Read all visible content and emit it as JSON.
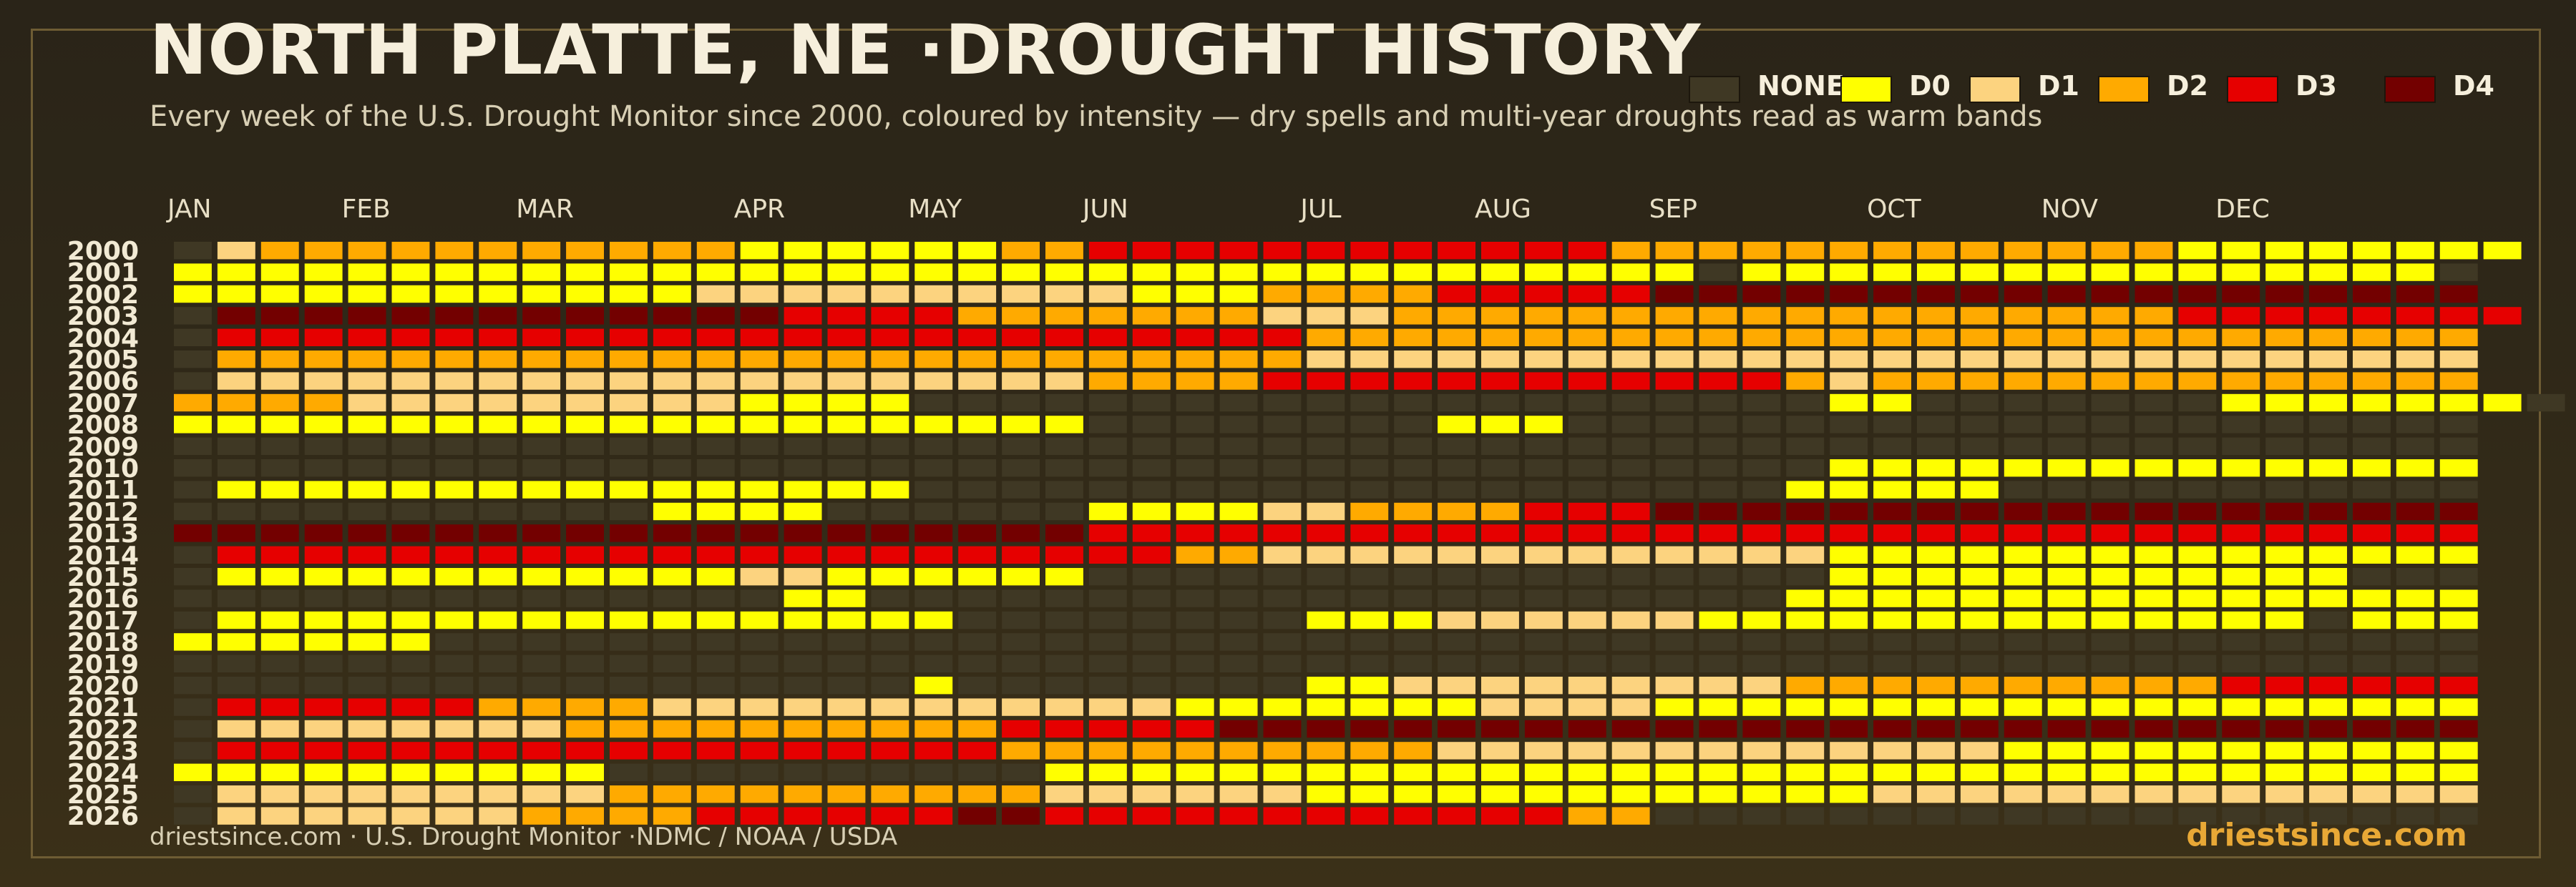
{
  "title": "NORTH PLATTE, NE ·DROUGHT HISTORY",
  "subtitle": "Every week of the U.S. Drought Monitor since 2000, coloured by intensity — dry spells and multi-year droughts read as warm bands",
  "footer": {
    "source": "driestsince.com  · U.S. Drought Monitor ·NDMC / NOAA / USDA",
    "brand": "driestsince.com"
  },
  "colors": {
    "NONE": "#3f3824",
    "D0": "#ffff00",
    "D1": "#fcd37f",
    "D2": "#ffaa00",
    "D3": "#e60000",
    "D4": "#730000"
  },
  "chart_data": {
    "type": "heatmap",
    "legend": [
      {
        "label": "NONE",
        "code": "NONE"
      },
      {
        "label": "D0",
        "code": "D0"
      },
      {
        "label": "D1",
        "code": "D1"
      },
      {
        "label": "D2",
        "code": "D2"
      },
      {
        "label": "D3",
        "code": "D3"
      },
      {
        "label": "D4",
        "code": "D4"
      }
    ],
    "legend_placement": "top-right",
    "months": [
      {
        "label": "JAN",
        "week": 0
      },
      {
        "label": "FEB",
        "week": 4
      },
      {
        "label": "MAR",
        "week": 8
      },
      {
        "label": "APR",
        "week": 13
      },
      {
        "label": "MAY",
        "week": 17
      },
      {
        "label": "JUN",
        "week": 21
      },
      {
        "label": "JUL",
        "week": 26
      },
      {
        "label": "AUG",
        "week": 30
      },
      {
        "label": "SEP",
        "week": 34
      },
      {
        "label": "OCT",
        "week": 39
      },
      {
        "label": "NOV",
        "week": 43
      },
      {
        "label": "DEC",
        "week": 47
      }
    ],
    "weeks_per_year": 53,
    "value_scale": "0 = NONE, 1 = D0, 2 = D1, 3 = D2, 4 = D3, 5 = D4",
    "years": [
      {
        "year": "2000",
        "runs": [
          [
            0,
            1
          ],
          [
            2,
            1
          ],
          [
            3,
            11
          ],
          [
            1,
            6
          ],
          [
            3,
            2
          ],
          [
            4,
            12
          ],
          [
            3,
            13
          ],
          [
            1,
            8
          ]
        ]
      },
      {
        "year": "2001",
        "runs": [
          [
            1,
            35
          ],
          [
            0,
            1
          ],
          [
            1,
            16
          ],
          [
            0,
            1
          ]
        ]
      },
      {
        "year": "2002",
        "runs": [
          [
            1,
            12
          ],
          [
            2,
            10
          ],
          [
            1,
            3
          ],
          [
            3,
            4
          ],
          [
            4,
            5
          ],
          [
            5,
            19
          ]
        ]
      },
      {
        "year": "2003",
        "runs": [
          [
            0,
            1
          ],
          [
            5,
            13
          ],
          [
            4,
            4
          ],
          [
            3,
            7
          ],
          [
            2,
            3
          ],
          [
            3,
            18
          ],
          [
            4,
            8
          ]
        ]
      },
      {
        "year": "2004",
        "runs": [
          [
            0,
            1
          ],
          [
            4,
            25
          ],
          [
            3,
            27
          ]
        ]
      },
      {
        "year": "2005",
        "runs": [
          [
            0,
            1
          ],
          [
            3,
            25
          ],
          [
            2,
            27
          ]
        ]
      },
      {
        "year": "2006",
        "runs": [
          [
            0,
            1
          ],
          [
            2,
            20
          ],
          [
            3,
            4
          ],
          [
            4,
            12
          ],
          [
            3,
            1
          ],
          [
            2,
            1
          ],
          [
            3,
            14
          ]
        ]
      },
      {
        "year": "2007",
        "runs": [
          [
            3,
            4
          ],
          [
            2,
            9
          ],
          [
            1,
            4
          ],
          [
            0,
            21
          ],
          [
            1,
            2
          ],
          [
            0,
            7
          ],
          [
            1,
            7
          ],
          [
            0,
            1
          ]
        ]
      },
      {
        "year": "2008",
        "runs": [
          [
            1,
            21
          ],
          [
            0,
            8
          ],
          [
            1,
            3
          ],
          [
            0,
            21
          ]
        ]
      },
      {
        "year": "2009",
        "runs": [
          [
            0,
            53
          ]
        ]
      },
      {
        "year": "2010",
        "runs": [
          [
            0,
            38
          ],
          [
            1,
            15
          ]
        ]
      },
      {
        "year": "2011",
        "runs": [
          [
            0,
            1
          ],
          [
            1,
            16
          ],
          [
            0,
            20
          ],
          [
            1,
            5
          ],
          [
            0,
            11
          ]
        ]
      },
      {
        "year": "2012",
        "runs": [
          [
            0,
            11
          ],
          [
            1,
            4
          ],
          [
            0,
            6
          ],
          [
            1,
            4
          ],
          [
            2,
            2
          ],
          [
            3,
            4
          ],
          [
            4,
            3
          ],
          [
            5,
            19
          ]
        ]
      },
      {
        "year": "2013",
        "runs": [
          [
            5,
            21
          ],
          [
            4,
            32
          ]
        ]
      },
      {
        "year": "2014",
        "runs": [
          [
            0,
            1
          ],
          [
            4,
            22
          ],
          [
            3,
            2
          ],
          [
            2,
            13
          ],
          [
            1,
            15
          ]
        ]
      },
      {
        "year": "2015",
        "runs": [
          [
            0,
            1
          ],
          [
            1,
            12
          ],
          [
            2,
            2
          ],
          [
            1,
            6
          ],
          [
            0,
            17
          ],
          [
            1,
            12
          ],
          [
            0,
            3
          ]
        ]
      },
      {
        "year": "2016",
        "runs": [
          [
            0,
            14
          ],
          [
            1,
            2
          ],
          [
            0,
            21
          ],
          [
            1,
            16
          ]
        ]
      },
      {
        "year": "2017",
        "runs": [
          [
            0,
            1
          ],
          [
            1,
            17
          ],
          [
            0,
            8
          ],
          [
            1,
            3
          ],
          [
            2,
            6
          ],
          [
            1,
            14
          ],
          [
            0,
            1
          ],
          [
            1,
            3
          ]
        ]
      },
      {
        "year": "2018",
        "runs": [
          [
            1,
            6
          ],
          [
            0,
            47
          ]
        ]
      },
      {
        "year": "2019",
        "runs": [
          [
            0,
            53
          ]
        ]
      },
      {
        "year": "2020",
        "runs": [
          [
            0,
            17
          ],
          [
            1,
            1
          ],
          [
            0,
            8
          ],
          [
            1,
            2
          ],
          [
            2,
            9
          ],
          [
            3,
            10
          ],
          [
            4,
            6
          ]
        ]
      },
      {
        "year": "2021",
        "runs": [
          [
            0,
            1
          ],
          [
            4,
            6
          ],
          [
            3,
            4
          ],
          [
            2,
            12
          ],
          [
            1,
            7
          ],
          [
            2,
            4
          ],
          [
            1,
            19
          ]
        ]
      },
      {
        "year": "2022",
        "runs": [
          [
            0,
            1
          ],
          [
            2,
            8
          ],
          [
            3,
            10
          ],
          [
            4,
            5
          ],
          [
            5,
            29
          ]
        ]
      },
      {
        "year": "2023",
        "runs": [
          [
            0,
            1
          ],
          [
            4,
            18
          ],
          [
            3,
            10
          ],
          [
            2,
            13
          ],
          [
            1,
            11
          ]
        ]
      },
      {
        "year": "2024",
        "runs": [
          [
            1,
            10
          ],
          [
            0,
            10
          ],
          [
            1,
            33
          ]
        ]
      },
      {
        "year": "2025",
        "runs": [
          [
            0,
            1
          ],
          [
            2,
            9
          ],
          [
            3,
            10
          ],
          [
            2,
            6
          ],
          [
            1,
            13
          ],
          [
            2,
            14
          ]
        ]
      },
      {
        "year": "2026",
        "runs": [
          [
            0,
            1
          ],
          [
            2,
            7
          ],
          [
            3,
            4
          ],
          [
            4,
            6
          ],
          [
            5,
            2
          ],
          [
            4,
            12
          ],
          [
            3,
            2
          ],
          [
            0,
            19
          ]
        ]
      }
    ]
  }
}
